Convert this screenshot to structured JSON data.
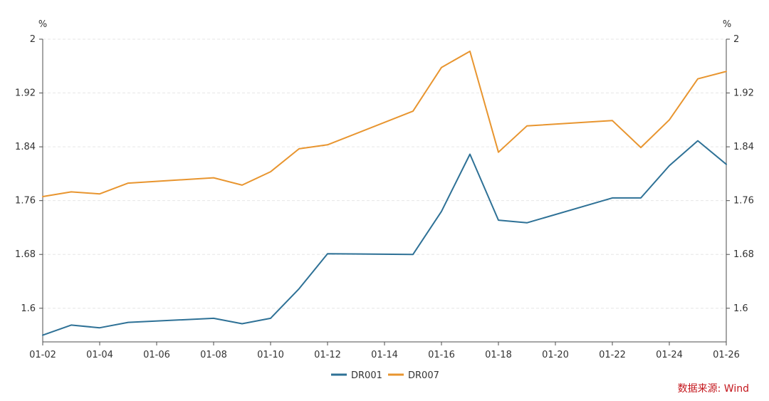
{
  "chart_data": {
    "type": "line",
    "title": "",
    "xlabel": "",
    "ylabel_left": "%",
    "ylabel_right": "%",
    "ylim": [
      1.55,
      2.0
    ],
    "yticks": [
      "1.6",
      "1.68",
      "1.76",
      "1.84",
      "1.92",
      "2"
    ],
    "ytick_values": [
      1.6,
      1.68,
      1.76,
      1.84,
      1.92,
      2.0
    ],
    "xticks": [
      "01-02",
      "01-04",
      "01-06",
      "01-08",
      "01-10",
      "01-12",
      "01-14",
      "01-16",
      "01-18",
      "01-20",
      "01-22",
      "01-24",
      "01-26"
    ],
    "xtick_days": [
      2,
      4,
      6,
      8,
      10,
      12,
      14,
      16,
      18,
      20,
      22,
      24,
      26
    ],
    "x_range": [
      2,
      26
    ],
    "grid": true,
    "legend_position": "bottom-center",
    "series": [
      {
        "name": "DR001",
        "color": "#2e7196",
        "x": [
          2,
          3,
          4,
          5,
          8,
          9,
          10,
          11,
          12,
          15,
          16,
          17,
          18,
          19,
          22,
          23,
          24,
          25,
          26
        ],
        "values": [
          1.56,
          1.575,
          1.571,
          1.579,
          1.585,
          1.577,
          1.585,
          1.629,
          1.681,
          1.68,
          1.744,
          1.829,
          1.731,
          1.727,
          1.764,
          1.764,
          1.812,
          1.849,
          1.814
        ]
      },
      {
        "name": "DR007",
        "color": "#e8952f",
        "x": [
          2,
          3,
          4,
          5,
          8,
          9,
          10,
          11,
          12,
          15,
          16,
          17,
          18,
          19,
          22,
          23,
          24,
          25,
          26
        ],
        "values": [
          1.766,
          1.773,
          1.77,
          1.786,
          1.794,
          1.783,
          1.803,
          1.837,
          1.843,
          1.893,
          1.958,
          1.982,
          1.832,
          1.871,
          1.879,
          1.839,
          1.88,
          1.941,
          1.952
        ]
      }
    ]
  },
  "source": "数据来源: Wind"
}
